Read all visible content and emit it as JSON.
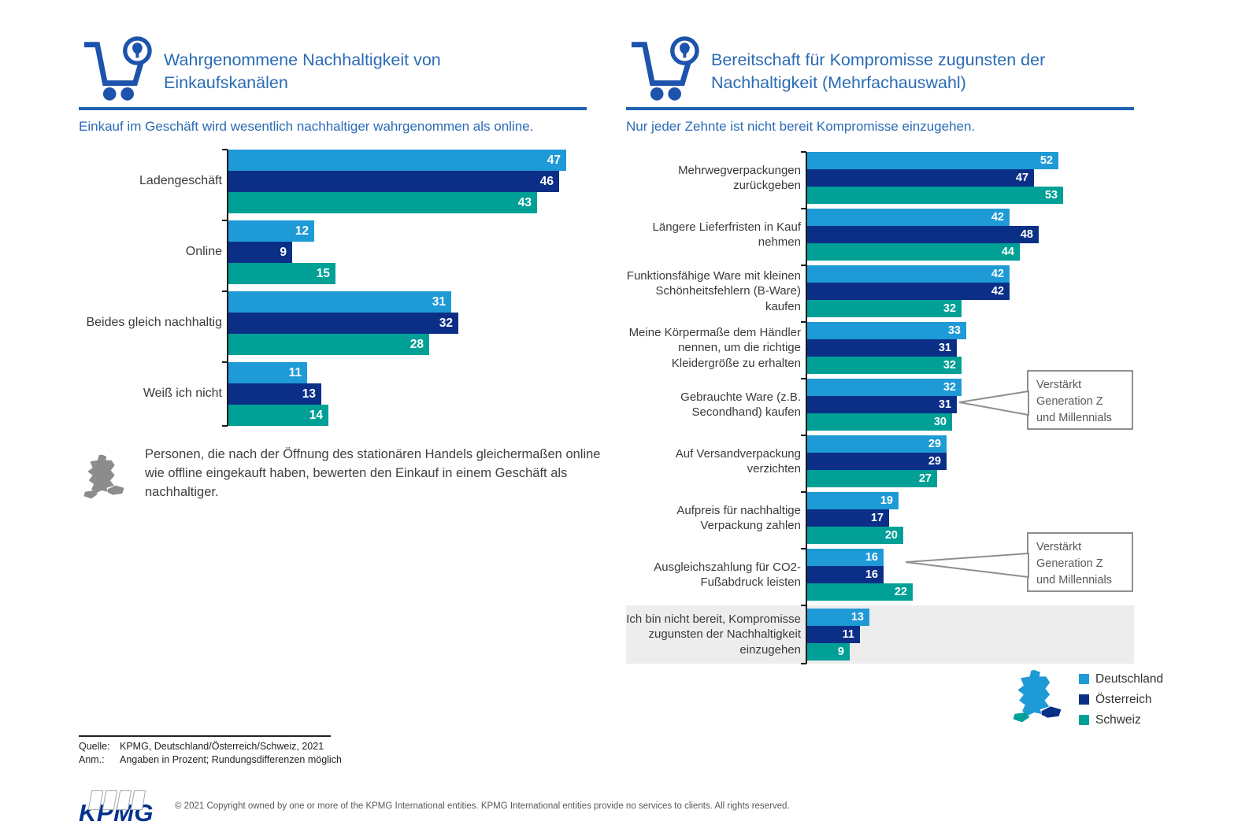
{
  "colors": {
    "deutschland": "#1E9AD6",
    "oesterreich": "#0B2F87",
    "schweiz": "#00A096",
    "title_blue": "#2A6BB5",
    "rule_blue": "#1F63B5",
    "icon_blue": "#1D53AD",
    "highlight_row_bg": "#EDEDED",
    "map_gray": "#8C8C8C"
  },
  "left_section": {
    "title": "Wahrgenommene Nachhaltigkeit von Einkaufskanälen",
    "subtitle": "Einkauf im Geschäft wird wesentlich nachhaltiger wahrgenommen als online.",
    "icon": "shopping-cart-tree-icon"
  },
  "right_section": {
    "title": "Bereitschaft für Kompromisse zugunsten der Nachhaltigkeit (Mehrfachauswahl)",
    "subtitle": "Nur jeder Zehnte ist nicht bereit Kompromisse einzugehen.",
    "icon": "shopping-cart-tree-icon"
  },
  "chart_data": [
    {
      "id": "left",
      "type": "bar",
      "orientation": "horizontal",
      "title": "Wahrgenommene Nachhaltigkeit von Einkaufskanälen",
      "unit": "percent",
      "xlim": [
        0,
        50
      ],
      "grid": false,
      "value_labels": "inside-end",
      "categories": [
        "Ladengeschäft",
        "Online",
        "Beides gleich nachhaltig",
        "Weiß ich nicht"
      ],
      "series": [
        {
          "name": "Deutschland",
          "color_key": "deutschland",
          "values": [
            47,
            12,
            31,
            11
          ]
        },
        {
          "name": "Österreich",
          "color_key": "oesterreich",
          "values": [
            46,
            9,
            32,
            13
          ]
        },
        {
          "name": "Schweiz",
          "color_key": "schweiz",
          "values": [
            43,
            15,
            28,
            14
          ]
        }
      ]
    },
    {
      "id": "right",
      "type": "bar",
      "orientation": "horizontal",
      "title": "Bereitschaft für Kompromisse zugunsten der Nachhaltigkeit (Mehrfachauswahl)",
      "unit": "percent",
      "xlim": [
        0,
        60
      ],
      "grid": false,
      "value_labels": "inside-end",
      "highlight_category_index": 8,
      "categories": [
        "Mehrwegverpackungen zurückgeben",
        "Längere Lieferfristen in Kauf nehmen",
        "Funktionsfähige Ware mit kleinen Schönheitsfehlern (B-Ware) kaufen",
        "Meine Körpermaße dem Händler nennen, um die richtige Kleidergröße zu erhalten",
        "Gebrauchte Ware (z.B. Secondhand) kaufen",
        "Auf Versandverpackung verzichten",
        "Aufpreis für nachhaltige Verpackung zahlen",
        "Ausgleichszahlung für CO2-Fußabdruck leisten",
        "Ich bin nicht bereit, Kompromisse zugunsten der Nachhaltigkeit einzugehen"
      ],
      "series": [
        {
          "name": "Deutschland",
          "color_key": "deutschland",
          "values": [
            52,
            42,
            42,
            33,
            32,
            29,
            19,
            16,
            13
          ]
        },
        {
          "name": "Österreich",
          "color_key": "oesterreich",
          "values": [
            47,
            48,
            42,
            31,
            31,
            29,
            17,
            16,
            11
          ]
        },
        {
          "name": "Schweiz",
          "color_key": "schweiz",
          "values": [
            53,
            44,
            32,
            32,
            30,
            27,
            20,
            22,
            9
          ]
        }
      ]
    }
  ],
  "note": {
    "icon": "dach-map-icon",
    "text": "Personen, die nach der Öffnung des stationären Handels gleichermaßen online wie offline eingekauft haben, bewerten den Einkauf in einem Geschäft als nachhaltiger."
  },
  "callouts": [
    {
      "text": "Verstärkt Generation Z und Millennials"
    },
    {
      "text": "Verstärkt Generation Z und Millennials"
    }
  ],
  "legend": {
    "icon": "dach-map-icon",
    "items": [
      {
        "label": "Deutschland",
        "color_key": "deutschland"
      },
      {
        "label": "Österreich",
        "color_key": "oesterreich"
      },
      {
        "label": "Schweiz",
        "color_key": "schweiz"
      }
    ]
  },
  "source": {
    "label_quelle": "Quelle:",
    "text_quelle": "KPMG, Deutschland/Österreich/Schweiz, 2021",
    "label_anm": "Anm.:",
    "text_anm": "Angaben in Prozent; Rundungsdifferenzen möglich"
  },
  "footer": {
    "logo_text": "KPMG",
    "copyright": "© 2021 Copyright owned by one or more of the KPMG International entities. KPMG International entities provide no services to clients. All rights reserved."
  }
}
